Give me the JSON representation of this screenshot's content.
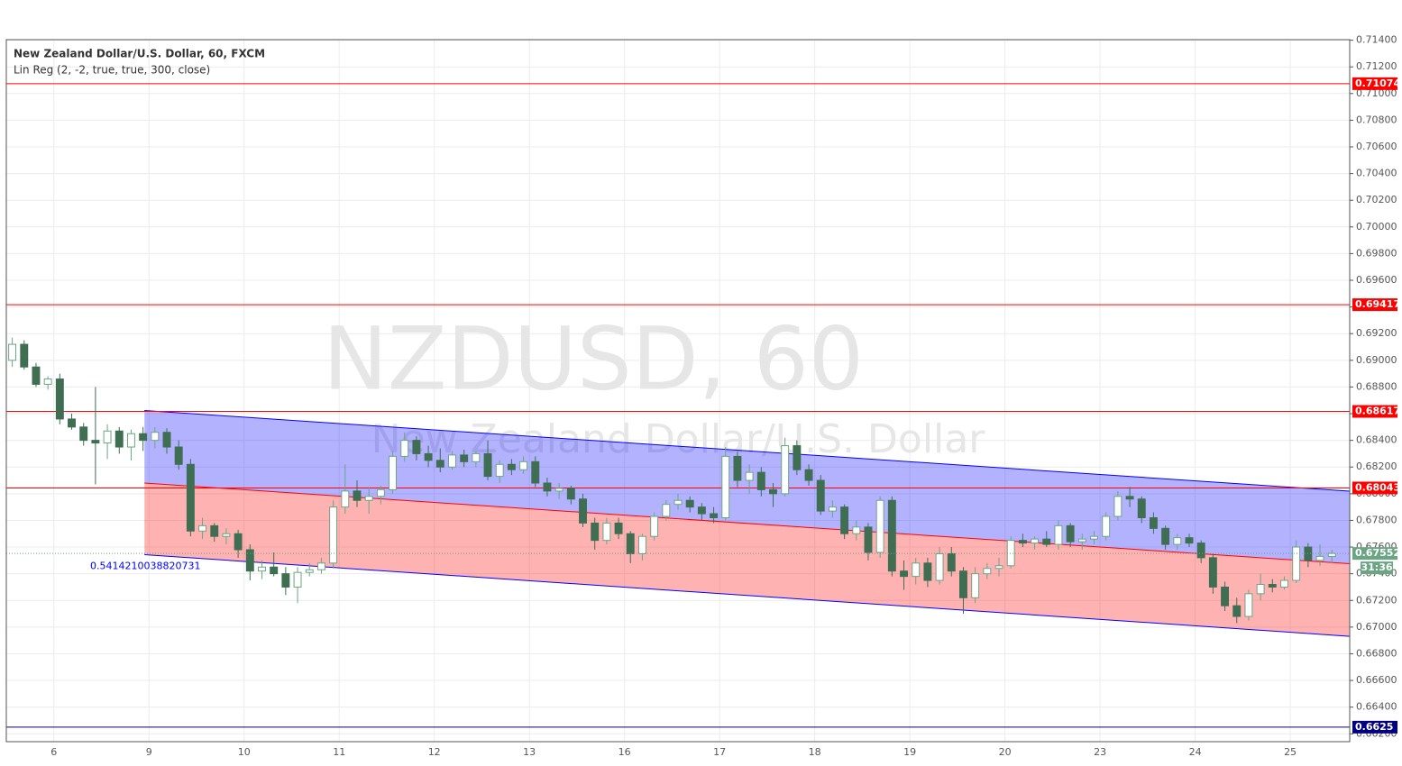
{
  "chart_data": {
    "type": "candlestick",
    "title": "New Zealand Dollar/U.S. Dollar, 60, FXCM",
    "indicator": "Lin Reg (2, -2, true, true, 300, close)",
    "watermark": "NZDUSD, 60",
    "watermark_subtitle": "New Zealand Dollar/U.S. Dollar",
    "up_color": "#6ba583",
    "down_color": "#3f6e52",
    "grid": true,
    "ylim": [
      0.66141,
      0.71404
    ],
    "yticks": [
      {
        "value": 0.714,
        "label": "0.71400"
      },
      {
        "value": 0.712,
        "label": "0.71200"
      },
      {
        "value": 0.71,
        "label": "0.71000"
      },
      {
        "value": 0.708,
        "label": "0.70800"
      },
      {
        "value": 0.706,
        "label": "0.70600"
      },
      {
        "value": 0.704,
        "label": "0.70400"
      },
      {
        "value": 0.702,
        "label": "0.70200"
      },
      {
        "value": 0.7,
        "label": "0.70000"
      },
      {
        "value": 0.698,
        "label": "0.69800"
      },
      {
        "value": 0.696,
        "label": "0.69600"
      },
      {
        "value": 0.694,
        "label": "0.69400"
      },
      {
        "value": 0.692,
        "label": "0.69200"
      },
      {
        "value": 0.69,
        "label": "0.69000"
      },
      {
        "value": 0.688,
        "label": "0.68800"
      },
      {
        "value": 0.686,
        "label": "0.68600"
      },
      {
        "value": 0.684,
        "label": "0.68400"
      },
      {
        "value": 0.682,
        "label": "0.68200"
      },
      {
        "value": 0.68,
        "label": "0.68000"
      },
      {
        "value": 0.678,
        "label": "0.67800"
      },
      {
        "value": 0.676,
        "label": "0.67600"
      },
      {
        "value": 0.674,
        "label": "0.67400"
      },
      {
        "value": 0.672,
        "label": "0.67200"
      },
      {
        "value": 0.67,
        "label": "0.67000"
      },
      {
        "value": 0.668,
        "label": "0.66800"
      },
      {
        "value": 0.666,
        "label": "0.66600"
      },
      {
        "value": 0.664,
        "label": "0.66400"
      },
      {
        "value": 0.662,
        "label": "0.66200"
      }
    ],
    "categories": [
      null,
      null,
      null,
      null,
      "6",
      null,
      null,
      null,
      null,
      null,
      null,
      null,
      "9",
      null,
      null,
      null,
      null,
      null,
      null,
      null,
      "10",
      null,
      null,
      null,
      null,
      null,
      null,
      null,
      "11",
      null,
      null,
      null,
      null,
      null,
      null,
      null,
      "12",
      null,
      null,
      null,
      null,
      null,
      null,
      null,
      "13",
      null,
      null,
      null,
      null,
      null,
      null,
      null,
      "16",
      null,
      null,
      null,
      null,
      null,
      null,
      null,
      "17",
      null,
      null,
      null,
      null,
      null,
      null,
      null,
      "18",
      null,
      null,
      null,
      null,
      null,
      null,
      null,
      "19",
      null,
      null,
      null,
      null,
      null,
      null,
      null,
      "20",
      null,
      null,
      null,
      null,
      null,
      null,
      null,
      "23",
      null,
      null,
      null,
      null,
      null,
      null,
      null,
      "24",
      null,
      null,
      null,
      null,
      null,
      null,
      null,
      "25",
      null,
      null,
      null
    ],
    "candles": [
      [
        0.69,
        0.6917,
        0.6895,
        0.6912
      ],
      [
        0.6912,
        0.6915,
        0.6893,
        0.6895
      ],
      [
        0.6895,
        0.6898,
        0.688,
        0.6882
      ],
      [
        0.6882,
        0.6888,
        0.6878,
        0.6886
      ],
      [
        0.6886,
        0.689,
        0.6852,
        0.6856
      ],
      [
        0.6856,
        0.686,
        0.6848,
        0.685
      ],
      [
        0.685,
        0.6853,
        0.6836,
        0.684
      ],
      [
        0.684,
        0.688,
        0.6807,
        0.6838
      ],
      [
        0.6838,
        0.6852,
        0.6826,
        0.6847
      ],
      [
        0.6847,
        0.685,
        0.683,
        0.6835
      ],
      [
        0.6835,
        0.6848,
        0.6825,
        0.6845
      ],
      [
        0.6845,
        0.685,
        0.6832,
        0.684
      ],
      [
        0.684,
        0.685,
        0.6834,
        0.6846
      ],
      [
        0.6846,
        0.6849,
        0.683,
        0.6835
      ],
      [
        0.6835,
        0.684,
        0.6818,
        0.6822
      ],
      [
        0.6822,
        0.6826,
        0.6768,
        0.6772
      ],
      [
        0.6772,
        0.6782,
        0.6766,
        0.6776
      ],
      [
        0.6776,
        0.6778,
        0.6764,
        0.6768
      ],
      [
        0.6768,
        0.6774,
        0.6762,
        0.677
      ],
      [
        0.677,
        0.6773,
        0.6752,
        0.6758
      ],
      [
        0.6758,
        0.6762,
        0.6735,
        0.6742
      ],
      [
        0.6742,
        0.675,
        0.6736,
        0.6745
      ],
      [
        0.6745,
        0.6756,
        0.6738,
        0.674
      ],
      [
        0.674,
        0.6745,
        0.6724,
        0.673
      ],
      [
        0.673,
        0.6745,
        0.6718,
        0.6741
      ],
      [
        0.6741,
        0.6748,
        0.6738,
        0.6743
      ],
      [
        0.6743,
        0.6752,
        0.674,
        0.6748
      ],
      [
        0.6748,
        0.6795,
        0.6744,
        0.679
      ],
      [
        0.679,
        0.6822,
        0.6785,
        0.6802
      ],
      [
        0.6802,
        0.681,
        0.679,
        0.6795
      ],
      [
        0.6795,
        0.6805,
        0.6785,
        0.6798
      ],
      [
        0.6798,
        0.6806,
        0.6792,
        0.6803
      ],
      [
        0.6803,
        0.6832,
        0.68,
        0.6828
      ],
      [
        0.6828,
        0.6846,
        0.6824,
        0.684
      ],
      [
        0.684,
        0.6843,
        0.6825,
        0.683
      ],
      [
        0.683,
        0.6836,
        0.682,
        0.6825
      ],
      [
        0.6825,
        0.6834,
        0.6816,
        0.682
      ],
      [
        0.682,
        0.6832,
        0.6818,
        0.6829
      ],
      [
        0.6829,
        0.6833,
        0.682,
        0.6824
      ],
      [
        0.6824,
        0.6832,
        0.682,
        0.683
      ],
      [
        0.683,
        0.684,
        0.681,
        0.6813
      ],
      [
        0.6813,
        0.6825,
        0.6808,
        0.6822
      ],
      [
        0.6822,
        0.6826,
        0.6814,
        0.6818
      ],
      [
        0.6818,
        0.6828,
        0.6815,
        0.6824
      ],
      [
        0.6824,
        0.6828,
        0.6805,
        0.6808
      ],
      [
        0.6808,
        0.6812,
        0.6798,
        0.6802
      ],
      [
        0.6802,
        0.6808,
        0.6796,
        0.6804
      ],
      [
        0.6804,
        0.6806,
        0.6792,
        0.6796
      ],
      [
        0.6796,
        0.68,
        0.6775,
        0.6778
      ],
      [
        0.6778,
        0.6782,
        0.6758,
        0.6765
      ],
      [
        0.6765,
        0.6782,
        0.6762,
        0.6778
      ],
      [
        0.6778,
        0.6782,
        0.6766,
        0.677
      ],
      [
        0.677,
        0.6772,
        0.6748,
        0.6755
      ],
      [
        0.6755,
        0.677,
        0.675,
        0.6768
      ],
      [
        0.6768,
        0.6786,
        0.6765,
        0.6783
      ],
      [
        0.6783,
        0.6795,
        0.678,
        0.6792
      ],
      [
        0.6792,
        0.68,
        0.6788,
        0.6795
      ],
      [
        0.6795,
        0.6798,
        0.6786,
        0.679
      ],
      [
        0.679,
        0.6793,
        0.678,
        0.6785
      ],
      [
        0.6785,
        0.679,
        0.6778,
        0.6782
      ],
      [
        0.6782,
        0.6835,
        0.678,
        0.6828
      ],
      [
        0.6828,
        0.6832,
        0.6805,
        0.681
      ],
      [
        0.681,
        0.6822,
        0.68,
        0.6816
      ],
      [
        0.6816,
        0.682,
        0.6798,
        0.6803
      ],
      [
        0.6803,
        0.6808,
        0.679,
        0.68
      ],
      [
        0.68,
        0.6842,
        0.6798,
        0.6836
      ],
      [
        0.6836,
        0.684,
        0.6814,
        0.6818
      ],
      [
        0.6818,
        0.6822,
        0.6806,
        0.681
      ],
      [
        0.681,
        0.6814,
        0.6784,
        0.6787
      ],
      [
        0.6787,
        0.6795,
        0.6782,
        0.679
      ],
      [
        0.679,
        0.6792,
        0.6766,
        0.677
      ],
      [
        0.677,
        0.678,
        0.6765,
        0.6775
      ],
      [
        0.6775,
        0.6778,
        0.675,
        0.6756
      ],
      [
        0.6756,
        0.6798,
        0.6752,
        0.6795
      ],
      [
        0.6795,
        0.6798,
        0.6738,
        0.6742
      ],
      [
        0.6742,
        0.675,
        0.6728,
        0.6738
      ],
      [
        0.6738,
        0.6752,
        0.6732,
        0.6748
      ],
      [
        0.6748,
        0.6752,
        0.673,
        0.6735
      ],
      [
        0.6735,
        0.676,
        0.6732,
        0.6755
      ],
      [
        0.6755,
        0.676,
        0.6738,
        0.6742
      ],
      [
        0.6742,
        0.6745,
        0.671,
        0.6722
      ],
      [
        0.6722,
        0.6745,
        0.6718,
        0.674
      ],
      [
        0.674,
        0.6748,
        0.6736,
        0.6744
      ],
      [
        0.6744,
        0.6752,
        0.6738,
        0.6746
      ],
      [
        0.6746,
        0.6768,
        0.6744,
        0.6765
      ],
      [
        0.6765,
        0.677,
        0.676,
        0.6763
      ],
      [
        0.6763,
        0.6768,
        0.6758,
        0.6766
      ],
      [
        0.6766,
        0.6772,
        0.676,
        0.6762
      ],
      [
        0.6762,
        0.678,
        0.6758,
        0.6776
      ],
      [
        0.6776,
        0.6778,
        0.676,
        0.6764
      ],
      [
        0.6764,
        0.677,
        0.6758,
        0.6766
      ],
      [
        0.6766,
        0.6772,
        0.6762,
        0.6768
      ],
      [
        0.6768,
        0.6786,
        0.6765,
        0.6783
      ],
      [
        0.6783,
        0.6802,
        0.678,
        0.6798
      ],
      [
        0.6798,
        0.6805,
        0.679,
        0.6796
      ],
      [
        0.6796,
        0.6798,
        0.6778,
        0.6782
      ],
      [
        0.6782,
        0.6786,
        0.677,
        0.6774
      ],
      [
        0.6774,
        0.6776,
        0.6758,
        0.6762
      ],
      [
        0.6762,
        0.677,
        0.6758,
        0.6767
      ],
      [
        0.6767,
        0.677,
        0.676,
        0.6763
      ],
      [
        0.6763,
        0.6765,
        0.6748,
        0.6752
      ],
      [
        0.6752,
        0.6755,
        0.6725,
        0.673
      ],
      [
        0.673,
        0.6734,
        0.6712,
        0.6716
      ],
      [
        0.6716,
        0.6722,
        0.6703,
        0.6708
      ],
      [
        0.6708,
        0.6728,
        0.6705,
        0.6725
      ],
      [
        0.6725,
        0.674,
        0.672,
        0.6732
      ],
      [
        0.6732,
        0.6736,
        0.6726,
        0.673
      ],
      [
        0.673,
        0.6738,
        0.6728,
        0.6735
      ],
      [
        0.6735,
        0.6765,
        0.6733,
        0.676
      ],
      [
        0.676,
        0.6763,
        0.6745,
        0.675
      ],
      [
        0.675,
        0.6762,
        0.6746,
        0.6753
      ],
      [
        0.6753,
        0.6758,
        0.6748,
        0.67552
      ]
    ],
    "countdown": "31:36",
    "horizontal_lines": [
      {
        "value": 0.71074,
        "color": "#ff0000"
      },
      {
        "value": 0.69417,
        "color": "#ff0000"
      },
      {
        "value": 0.68617,
        "color": "#ff0000"
      },
      {
        "value": 0.68043,
        "color": "#ff0000"
      },
      {
        "value": 0.6625,
        "color": "#000080"
      }
    ],
    "channel": {
      "upper": [
        0.68624,
        0.68019
      ],
      "middle": [
        0.6808,
        0.67475
      ],
      "lower": [
        0.67543,
        0.66931
      ],
      "upper_color": "#0000ff",
      "middle_color": "#ff0000",
      "upper_fill": "rgba(0,0,255,0.3)",
      "lower_fill": "rgba(255,0,0,0.3)",
      "pearson": "0.5414210038820731"
    }
  }
}
